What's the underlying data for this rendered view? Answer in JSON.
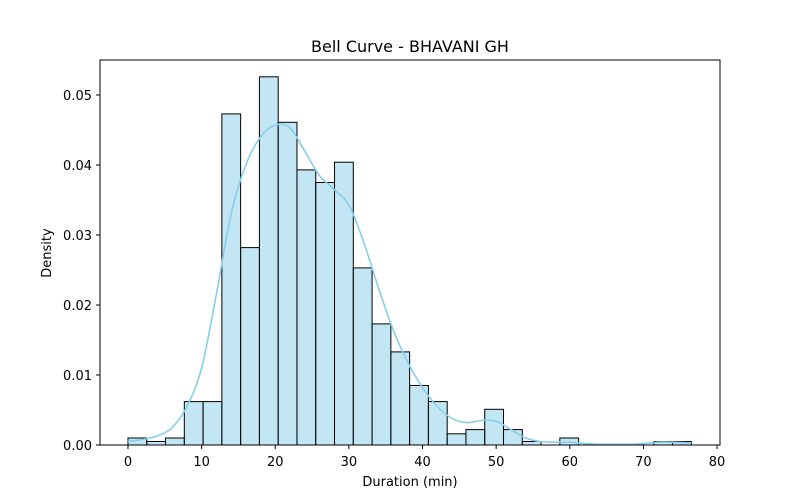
{
  "chart_data": {
    "type": "bar",
    "title": "Bell Curve - BHAVANI GH",
    "xlabel": "Duration (min)",
    "ylabel": "Density",
    "xlim": [
      -3.8,
      80.4
    ],
    "ylim": [
      0,
      0.055
    ],
    "xticks": [
      0,
      10,
      20,
      30,
      40,
      50,
      60,
      70,
      80
    ],
    "xtick_labels": [
      "0",
      "10",
      "20",
      "30",
      "40",
      "50",
      "60",
      "70",
      "80"
    ],
    "yticks": [
      0.0,
      0.01,
      0.02,
      0.03,
      0.04,
      0.05
    ],
    "ytick_labels": [
      "0.00",
      "0.01",
      "0.02",
      "0.03",
      "0.04",
      "0.05"
    ],
    "grid": false,
    "bar_color": "#87ceeb",
    "bar_opacity": 0.5,
    "edge_color": "#000000",
    "kde_color": "#87ceeb",
    "bins": [
      {
        "x0": 0.0,
        "x1": 2.55,
        "value": 0.001
      },
      {
        "x0": 2.55,
        "x1": 5.1,
        "value": 0.0005
      },
      {
        "x0": 5.1,
        "x1": 7.65,
        "value": 0.001
      },
      {
        "x0": 7.65,
        "x1": 10.2,
        "value": 0.0062
      },
      {
        "x0": 10.2,
        "x1": 12.75,
        "value": 0.0062
      },
      {
        "x0": 12.75,
        "x1": 15.3,
        "value": 0.0473
      },
      {
        "x0": 15.3,
        "x1": 17.85,
        "value": 0.0282
      },
      {
        "x0": 17.85,
        "x1": 20.4,
        "value": 0.0526
      },
      {
        "x0": 20.4,
        "x1": 22.95,
        "value": 0.0461
      },
      {
        "x0": 22.95,
        "x1": 25.5,
        "value": 0.0393
      },
      {
        "x0": 25.5,
        "x1": 28.05,
        "value": 0.0375
      },
      {
        "x0": 28.05,
        "x1": 30.6,
        "value": 0.0404
      },
      {
        "x0": 30.6,
        "x1": 33.15,
        "value": 0.0253
      },
      {
        "x0": 33.15,
        "x1": 35.7,
        "value": 0.0173
      },
      {
        "x0": 35.7,
        "x1": 38.25,
        "value": 0.0133
      },
      {
        "x0": 38.25,
        "x1": 40.8,
        "value": 0.0085
      },
      {
        "x0": 40.8,
        "x1": 43.35,
        "value": 0.0062
      },
      {
        "x0": 43.35,
        "x1": 45.9,
        "value": 0.0016
      },
      {
        "x0": 45.9,
        "x1": 48.45,
        "value": 0.0022
      },
      {
        "x0": 48.45,
        "x1": 51.0,
        "value": 0.0051
      },
      {
        "x0": 51.0,
        "x1": 53.55,
        "value": 0.0022
      },
      {
        "x0": 53.55,
        "x1": 56.1,
        "value": 0.0005
      },
      {
        "x0": 56.1,
        "x1": 58.65,
        "value": 0.0
      },
      {
        "x0": 58.65,
        "x1": 61.2,
        "value": 0.001
      },
      {
        "x0": 61.2,
        "x1": 63.75,
        "value": 0.0
      },
      {
        "x0": 63.75,
        "x1": 66.3,
        "value": 0.0
      },
      {
        "x0": 66.3,
        "x1": 68.85,
        "value": 0.0
      },
      {
        "x0": 68.85,
        "x1": 71.4,
        "value": 0.0
      },
      {
        "x0": 71.4,
        "x1": 73.95,
        "value": 0.0005
      },
      {
        "x0": 73.95,
        "x1": 76.5,
        "value": 0.0005
      }
    ],
    "kde": {
      "x": [
        0,
        2,
        4,
        6,
        8,
        10,
        12,
        14,
        16,
        18,
        20,
        22,
        24,
        26,
        28,
        30,
        32,
        34,
        36,
        38,
        40,
        42,
        44,
        46,
        48,
        50,
        52,
        54,
        56,
        58,
        60,
        62,
        64,
        66,
        68,
        70,
        72,
        74,
        76.5
      ],
      "y": [
        0.0005,
        0.0008,
        0.0013,
        0.0025,
        0.0055,
        0.011,
        0.0215,
        0.033,
        0.04,
        0.044,
        0.0457,
        0.0453,
        0.042,
        0.0385,
        0.0365,
        0.0343,
        0.029,
        0.0225,
        0.0165,
        0.0118,
        0.0082,
        0.0055,
        0.0038,
        0.0032,
        0.0035,
        0.0034,
        0.0022,
        0.001,
        0.0005,
        0.0004,
        0.0004,
        0.0002,
        0.0001,
        0.0001,
        0.0001,
        0.0002,
        0.0004,
        0.0004,
        0.0003
      ]
    }
  }
}
